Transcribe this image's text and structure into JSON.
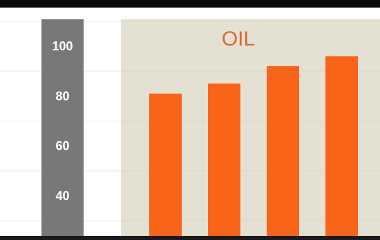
{
  "chart_data": {
    "type": "bar",
    "title": "OIL",
    "categories": [
      "",
      "",
      "",
      ""
    ],
    "values": [
      81,
      85,
      92,
      96
    ],
    "xlabel": "",
    "ylabel": "",
    "ylim": [
      25,
      110
    ],
    "yticks": [
      "100",
      "80",
      "60",
      "40"
    ],
    "grid": true,
    "legend": "none"
  },
  "colors": {
    "bar": "#fa6419",
    "panel_background": "#e4e1d3",
    "axis_band": "#787878",
    "tick_text": "#ffffff",
    "title_text": "#d86a32",
    "gridline": "#e8e8e8",
    "top_rule": "#0a0a0a"
  }
}
